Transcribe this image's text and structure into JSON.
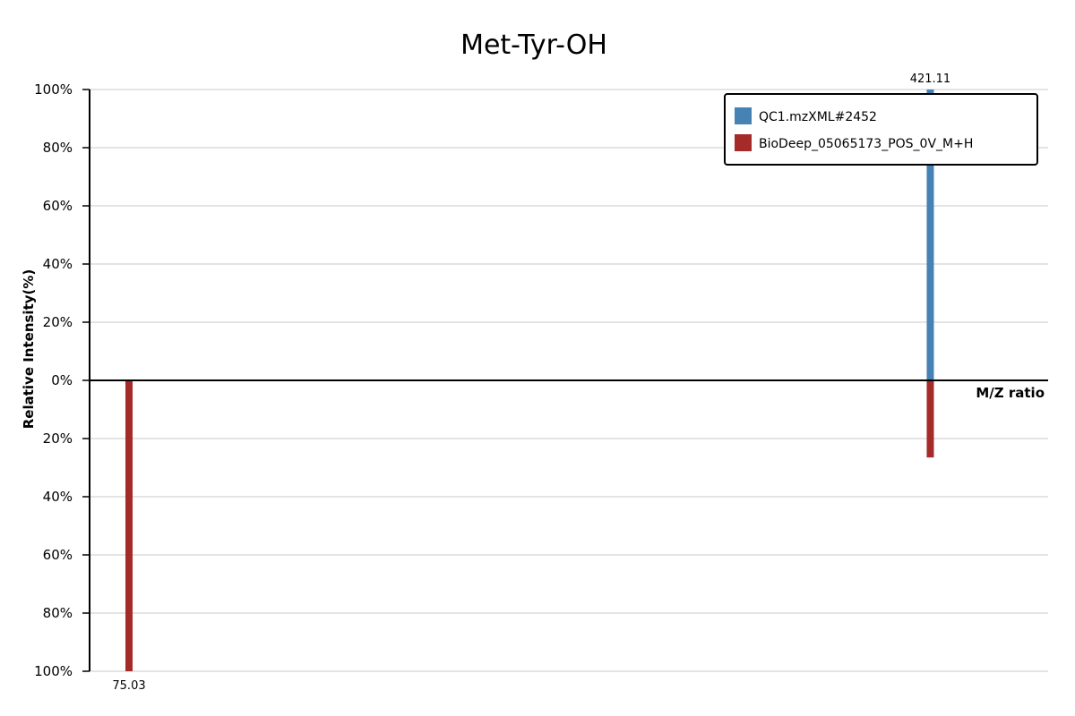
{
  "chart_data": {
    "type": "bar",
    "title": "Met-Tyr-OH",
    "xlabel": "M/Z ratio",
    "ylabel": "Relative Intensity(%)",
    "y_ticks_top": [
      "100%",
      "80%",
      "60%",
      "40%",
      "20%",
      "0%"
    ],
    "y_ticks_bottom": [
      "20%",
      "40%",
      "60%",
      "80%",
      "100%"
    ],
    "ylim": [
      -100,
      100
    ],
    "xlim": [
      58,
      472
    ],
    "grid": true,
    "legend_position": "top-right",
    "series": [
      {
        "name": "QC1.mzXML#2452",
        "color": "#4682b4",
        "direction": "up",
        "peaks": [
          {
            "mz": 421.11,
            "intensity": 100,
            "label": "421.11"
          }
        ]
      },
      {
        "name": "BioDeep_05065173_POS_0V_M+H",
        "color": "#a52a2a",
        "direction": "down",
        "peaks": [
          {
            "mz": 75.03,
            "intensity": 100,
            "label": "75.03"
          },
          {
            "mz": 421.11,
            "intensity": 26.5
          }
        ]
      }
    ]
  }
}
